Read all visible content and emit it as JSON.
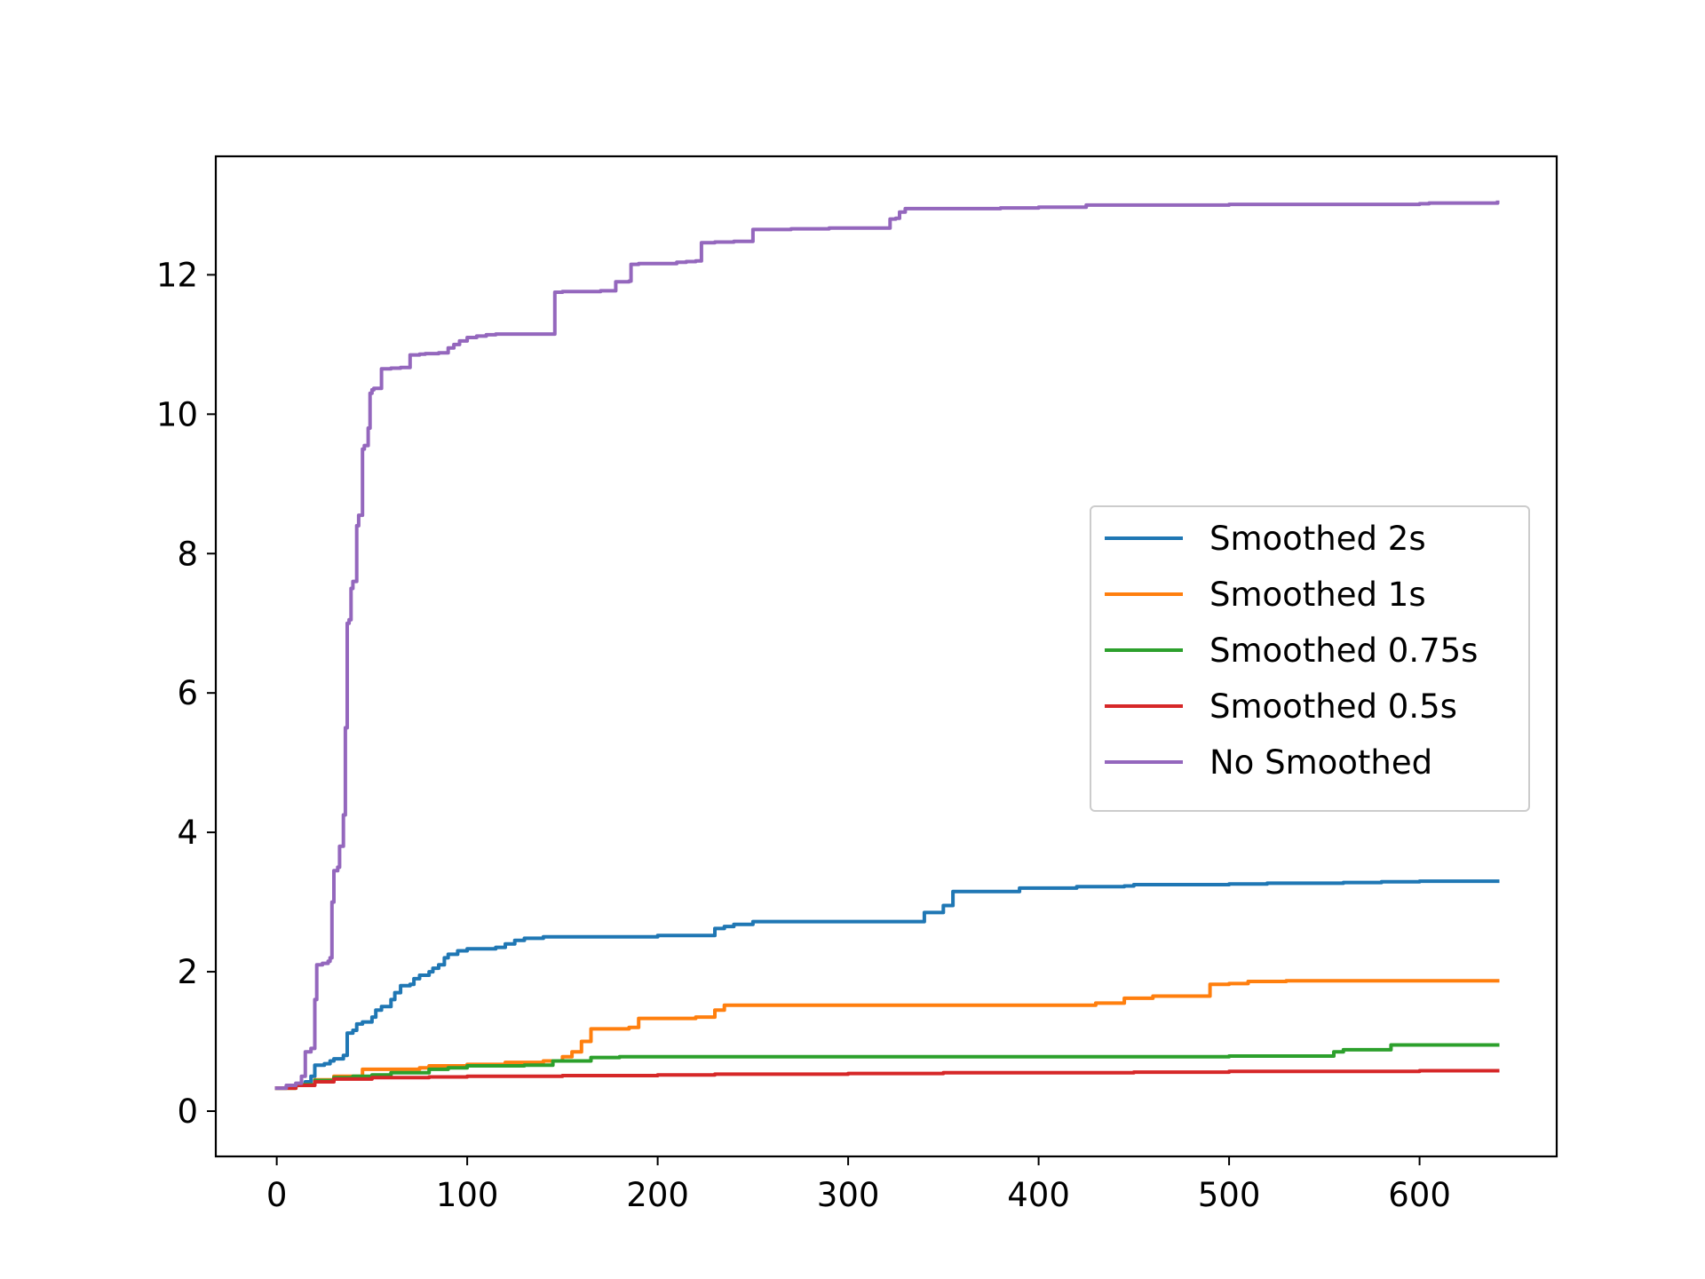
{
  "chart_data": {
    "type": "line",
    "title": "",
    "xlabel": "",
    "ylabel": "",
    "xlim": [
      -32,
      672
    ],
    "ylim": [
      -0.65,
      13.7
    ],
    "xticks": [
      0,
      100,
      200,
      300,
      400,
      500,
      600
    ],
    "yticks": [
      0,
      2,
      4,
      6,
      8,
      10,
      12
    ],
    "grid": false,
    "legend_position": "center-right",
    "series": [
      {
        "name": "Smoothed 2s",
        "color": "#1f77b4",
        "x": [
          0,
          5,
          10,
          15,
          18,
          20,
          25,
          28,
          30,
          35,
          37,
          40,
          42,
          45,
          50,
          52,
          55,
          60,
          62,
          65,
          70,
          72,
          75,
          80,
          82,
          85,
          88,
          90,
          95,
          100,
          115,
          120,
          125,
          130,
          140,
          180,
          200,
          210,
          225,
          230,
          235,
          240,
          250,
          270,
          300,
          320,
          335,
          340,
          350,
          355,
          380,
          390,
          420,
          445,
          450,
          500,
          520,
          560,
          580,
          600,
          641
        ],
        "y": [
          0.33,
          0.36,
          0.38,
          0.42,
          0.5,
          0.66,
          0.68,
          0.72,
          0.75,
          0.8,
          1.12,
          1.16,
          1.25,
          1.28,
          1.35,
          1.45,
          1.5,
          1.6,
          1.7,
          1.8,
          1.82,
          1.9,
          1.95,
          2.0,
          2.05,
          2.1,
          2.2,
          2.25,
          2.3,
          2.33,
          2.35,
          2.4,
          2.45,
          2.48,
          2.5,
          2.5,
          2.52,
          2.52,
          2.52,
          2.62,
          2.65,
          2.68,
          2.72,
          2.72,
          2.72,
          2.72,
          2.72,
          2.85,
          2.95,
          3.15,
          3.15,
          3.2,
          3.22,
          3.23,
          3.25,
          3.26,
          3.27,
          3.28,
          3.29,
          3.3,
          3.3
        ]
      },
      {
        "name": "Smoothed 1s",
        "color": "#ff7f0e",
        "x": [
          0,
          10,
          20,
          30,
          45,
          60,
          75,
          80,
          100,
          120,
          140,
          150,
          155,
          160,
          165,
          185,
          190,
          220,
          230,
          235,
          250,
          300,
          350,
          425,
          430,
          445,
          460,
          488,
          490,
          500,
          510,
          530,
          560,
          600,
          641
        ],
        "y": [
          0.33,
          0.38,
          0.45,
          0.5,
          0.6,
          0.6,
          0.62,
          0.65,
          0.67,
          0.7,
          0.72,
          0.78,
          0.85,
          1.0,
          1.18,
          1.2,
          1.33,
          1.35,
          1.45,
          1.52,
          1.52,
          1.52,
          1.52,
          1.52,
          1.55,
          1.62,
          1.65,
          1.65,
          1.82,
          1.83,
          1.86,
          1.87,
          1.87,
          1.87,
          1.87
        ]
      },
      {
        "name": "Smoothed 0.75s",
        "color": "#2ca02c",
        "x": [
          0,
          10,
          20,
          30,
          40,
          50,
          60,
          80,
          90,
          100,
          130,
          145,
          160,
          165,
          180,
          200,
          250,
          300,
          350,
          400,
          450,
          500,
          550,
          555,
          560,
          580,
          585,
          600,
          641
        ],
        "y": [
          0.33,
          0.38,
          0.44,
          0.48,
          0.5,
          0.52,
          0.55,
          0.6,
          0.62,
          0.65,
          0.66,
          0.72,
          0.72,
          0.77,
          0.78,
          0.78,
          0.78,
          0.78,
          0.78,
          0.78,
          0.78,
          0.79,
          0.79,
          0.85,
          0.88,
          0.88,
          0.95,
          0.95,
          0.95
        ]
      },
      {
        "name": "Smoothed 0.5s",
        "color": "#d62728",
        "x": [
          0,
          10,
          20,
          30,
          50,
          80,
          100,
          150,
          200,
          230,
          250,
          300,
          350,
          400,
          450,
          500,
          550,
          600,
          641
        ],
        "y": [
          0.33,
          0.37,
          0.42,
          0.46,
          0.48,
          0.49,
          0.5,
          0.51,
          0.52,
          0.53,
          0.53,
          0.54,
          0.55,
          0.55,
          0.56,
          0.57,
          0.57,
          0.58,
          0.58
        ]
      },
      {
        "name": "No Smoothed",
        "color": "#9467bd",
        "x": [
          0,
          5,
          10,
          13,
          15,
          18,
          20,
          21,
          24,
          27,
          28,
          29,
          30,
          32,
          33,
          35,
          36,
          37,
          38,
          39,
          40,
          42,
          43,
          44,
          45,
          46,
          48,
          49,
          50,
          51,
          52,
          55,
          58,
          60,
          65,
          70,
          75,
          78,
          85,
          90,
          93,
          96,
          100,
          105,
          110,
          115,
          120,
          130,
          140,
          145,
          146,
          150,
          170,
          178,
          185,
          186,
          190,
          210,
          215,
          220,
          223,
          230,
          240,
          248,
          250,
          270,
          290,
          320,
          322,
          325,
          327,
          330,
          350,
          380,
          400,
          420,
          425,
          450,
          500,
          550,
          600,
          605,
          620,
          641
        ],
        "y": [
          0.33,
          0.37,
          0.4,
          0.5,
          0.85,
          0.9,
          1.6,
          2.1,
          2.12,
          2.15,
          2.2,
          3.0,
          3.45,
          3.5,
          3.8,
          4.25,
          5.5,
          7.0,
          7.05,
          7.5,
          7.6,
          8.4,
          8.55,
          8.55,
          9.5,
          9.55,
          9.8,
          10.3,
          10.35,
          10.37,
          10.37,
          10.65,
          10.65,
          10.66,
          10.67,
          10.85,
          10.86,
          10.87,
          10.88,
          10.95,
          11.0,
          11.05,
          11.1,
          11.12,
          11.14,
          11.15,
          11.15,
          11.15,
          11.15,
          11.15,
          11.75,
          11.76,
          11.77,
          11.9,
          11.91,
          12.15,
          12.16,
          12.18,
          12.19,
          12.2,
          12.46,
          12.47,
          12.48,
          12.48,
          12.65,
          12.66,
          12.67,
          12.67,
          12.8,
          12.81,
          12.9,
          12.95,
          12.95,
          12.96,
          12.97,
          12.97,
          13.0,
          13.0,
          13.01,
          13.01,
          13.02,
          13.03,
          13.03,
          13.04
        ]
      }
    ]
  }
}
